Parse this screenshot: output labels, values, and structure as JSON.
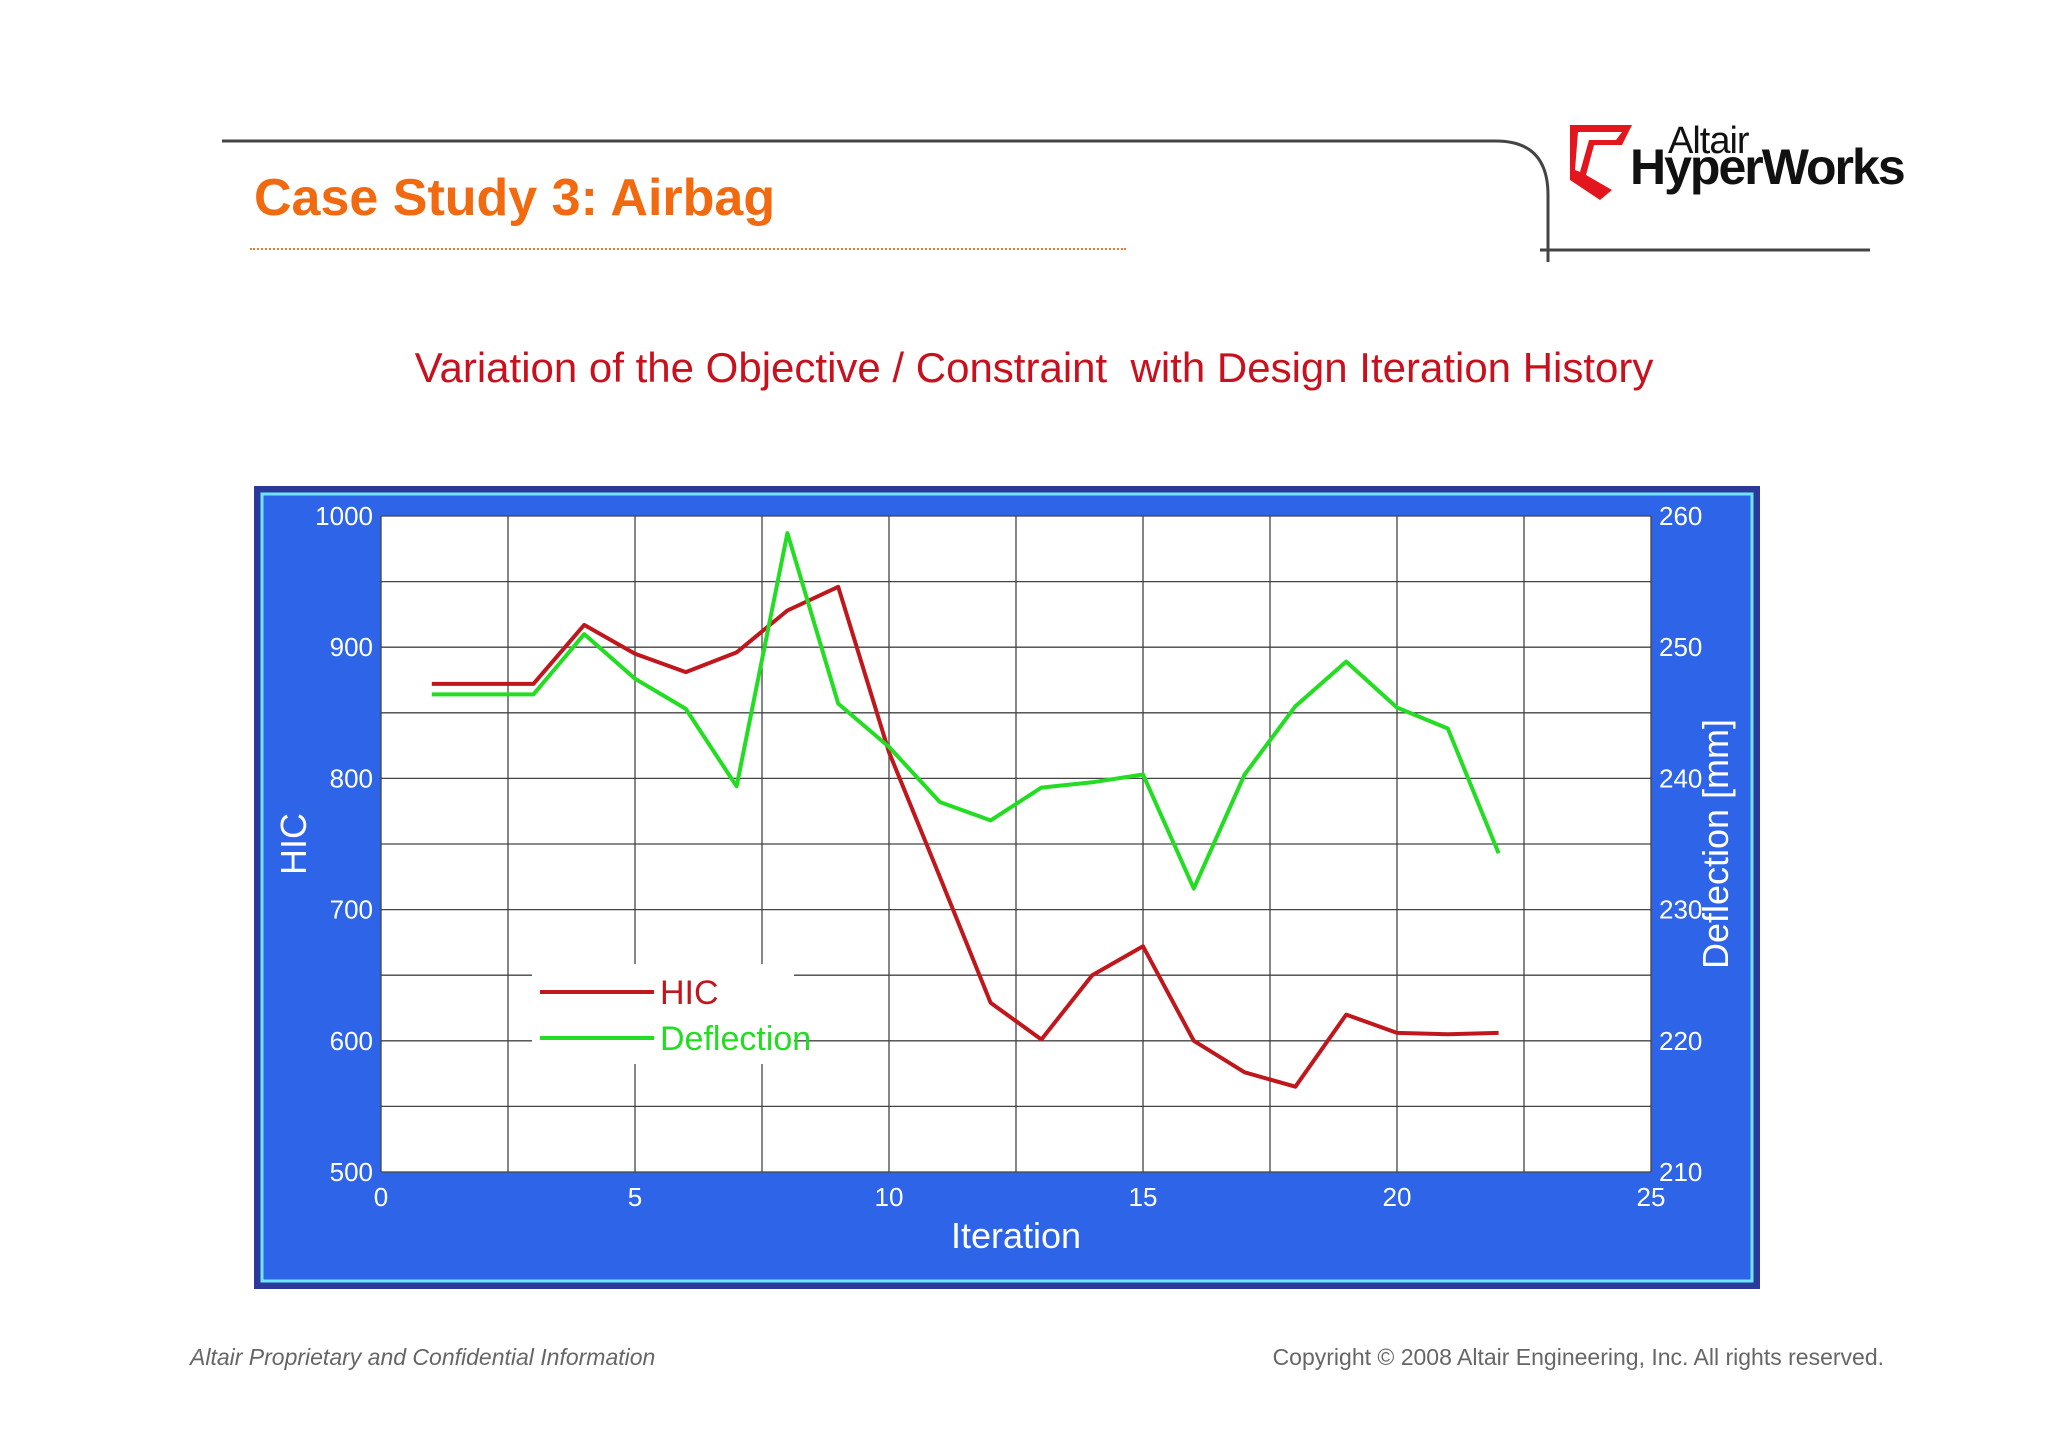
{
  "slide": {
    "title": "Case Study 3: Airbag",
    "subtitle": "Variation of the Objective / Constraint  with Design Iteration History"
  },
  "logo": {
    "brand_small": "Altair",
    "brand_big": "HyperWorks",
    "mark_color": "#e3161e"
  },
  "footer": {
    "left": "Altair Proprietary and Confidential Information",
    "right": "Copyright © 2008 Altair Engineering, Inc. All rights reserved."
  },
  "colors": {
    "title": "#f26a10",
    "subtitle": "#c8101e",
    "chart_background": "#2e64e8",
    "hic_line": "#c0171c",
    "deflection_line": "#22dd22"
  },
  "chart_data": {
    "type": "line",
    "xlabel": "Iteration",
    "ylabel_left": "HIC",
    "ylabel_right": "Deflection [mm]",
    "xlim": [
      0,
      25
    ],
    "ylim_left": [
      500,
      1000
    ],
    "ylim_right": [
      210,
      260
    ],
    "x_ticks": [
      0,
      5,
      10,
      15,
      20,
      25
    ],
    "y_ticks_left": [
      500,
      600,
      700,
      800,
      900,
      1000
    ],
    "y_ticks_right": [
      210,
      220,
      230,
      240,
      250,
      260
    ],
    "grid": true,
    "legend": "lower-left",
    "series": [
      {
        "name": "HIC",
        "axis": "left",
        "x": [
          1,
          2,
          3,
          4,
          5,
          6,
          7,
          8,
          9,
          10,
          11,
          12,
          13,
          14,
          15,
          16,
          17,
          18,
          19,
          20,
          21,
          22
        ],
        "y": [
          872,
          872,
          872,
          917,
          895,
          881,
          896,
          928,
          946,
          820,
          725,
          629,
          601,
          650,
          672,
          600,
          576,
          565,
          620,
          606,
          605,
          606
        ]
      },
      {
        "name": "Deflection",
        "axis": "right",
        "x": [
          1,
          2,
          3,
          4,
          5,
          6,
          7,
          8,
          9,
          10,
          11,
          12,
          13,
          14,
          15,
          16,
          17,
          18,
          19,
          20,
          21,
          22
        ],
        "y": [
          246.4,
          246.4,
          246.4,
          251.0,
          247.6,
          245.3,
          239.4,
          258.7,
          245.7,
          242.4,
          238.2,
          236.8,
          239.3,
          239.7,
          240.3,
          231.6,
          240.3,
          245.5,
          248.9,
          245.4,
          243.8,
          234.3
        ]
      }
    ]
  }
}
